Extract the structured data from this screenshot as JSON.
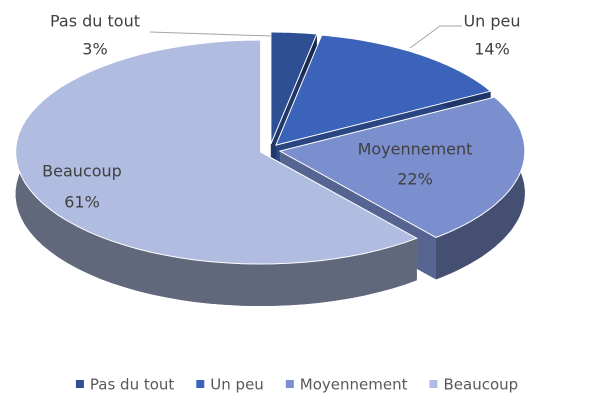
{
  "chart_data": {
    "type": "pie",
    "categories": [
      "Pas du tout",
      "Un peu",
      "Moyennement",
      "Beaucoup"
    ],
    "values": [
      3,
      14,
      22,
      61
    ],
    "value_labels": [
      "3%",
      "14%",
      "22%",
      "61%"
    ],
    "colors": [
      "#2f4f94",
      "#3b63b9",
      "#7b8fcf",
      "#b1bde0"
    ],
    "legend": "bottom"
  }
}
